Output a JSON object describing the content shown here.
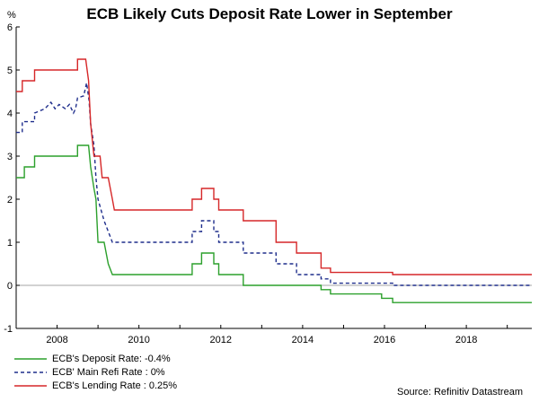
{
  "chart_data": {
    "type": "line",
    "title": "ECB Likely Cuts Deposit Rate Lower in September",
    "ylabel": "%",
    "xlabel": "",
    "ylim": [
      -1,
      6
    ],
    "xlim": [
      2007.0,
      2019.6
    ],
    "yticks": [
      -1,
      0,
      1,
      2,
      3,
      4,
      5,
      6
    ],
    "xticks": [
      2008,
      2010,
      2012,
      2014,
      2016,
      2018
    ],
    "series": [
      {
        "name": "ECB's Deposit Rate: -0.4%",
        "color": "#2ca02c",
        "style": "solid",
        "points": [
          [
            2007.0,
            2.5
          ],
          [
            2007.2,
            2.5
          ],
          [
            2007.2,
            2.75
          ],
          [
            2007.45,
            2.75
          ],
          [
            2007.45,
            3.0
          ],
          [
            2008.5,
            3.0
          ],
          [
            2008.5,
            3.25
          ],
          [
            2008.77,
            3.25
          ],
          [
            2008.82,
            2.75
          ],
          [
            2008.9,
            2.25
          ],
          [
            2008.95,
            2.0
          ],
          [
            2009.0,
            1.0
          ],
          [
            2009.15,
            1.0
          ],
          [
            2009.25,
            0.5
          ],
          [
            2009.35,
            0.25
          ],
          [
            2011.3,
            0.25
          ],
          [
            2011.3,
            0.5
          ],
          [
            2011.53,
            0.5
          ],
          [
            2011.53,
            0.75
          ],
          [
            2011.83,
            0.75
          ],
          [
            2011.83,
            0.5
          ],
          [
            2011.95,
            0.5
          ],
          [
            2011.95,
            0.25
          ],
          [
            2012.55,
            0.25
          ],
          [
            2012.55,
            0.0
          ],
          [
            2014.45,
            0.0
          ],
          [
            2014.45,
            -0.1
          ],
          [
            2014.68,
            -0.1
          ],
          [
            2014.68,
            -0.2
          ],
          [
            2015.93,
            -0.2
          ],
          [
            2015.93,
            -0.3
          ],
          [
            2016.2,
            -0.3
          ],
          [
            2016.2,
            -0.4
          ],
          [
            2019.6,
            -0.4
          ]
        ]
      },
      {
        "name": "ECB' Main Refi Rate : 0%",
        "color": "#1f2e8c",
        "style": "dashed",
        "points": [
          [
            2007.0,
            3.55
          ],
          [
            2007.15,
            3.55
          ],
          [
            2007.15,
            3.8
          ],
          [
            2007.45,
            3.8
          ],
          [
            2007.45,
            4.0
          ],
          [
            2007.7,
            4.1
          ],
          [
            2007.85,
            4.25
          ],
          [
            2007.95,
            4.1
          ],
          [
            2008.05,
            4.2
          ],
          [
            2008.2,
            4.1
          ],
          [
            2008.3,
            4.2
          ],
          [
            2008.4,
            4.0
          ],
          [
            2008.45,
            4.1
          ],
          [
            2008.5,
            4.35
          ],
          [
            2008.65,
            4.4
          ],
          [
            2008.72,
            4.7
          ],
          [
            2008.78,
            4.3
          ],
          [
            2008.82,
            3.75
          ],
          [
            2008.9,
            3.25
          ],
          [
            2008.95,
            2.5
          ],
          [
            2009.0,
            2.0
          ],
          [
            2009.15,
            1.5
          ],
          [
            2009.25,
            1.25
          ],
          [
            2009.35,
            1.0
          ],
          [
            2011.3,
            1.0
          ],
          [
            2011.3,
            1.25
          ],
          [
            2011.53,
            1.25
          ],
          [
            2011.53,
            1.5
          ],
          [
            2011.83,
            1.5
          ],
          [
            2011.83,
            1.25
          ],
          [
            2011.95,
            1.25
          ],
          [
            2011.95,
            1.0
          ],
          [
            2012.55,
            1.0
          ],
          [
            2012.55,
            0.75
          ],
          [
            2013.35,
            0.75
          ],
          [
            2013.35,
            0.5
          ],
          [
            2013.85,
            0.5
          ],
          [
            2013.85,
            0.25
          ],
          [
            2014.45,
            0.25
          ],
          [
            2014.45,
            0.15
          ],
          [
            2014.68,
            0.15
          ],
          [
            2014.68,
            0.05
          ],
          [
            2016.2,
            0.05
          ],
          [
            2016.2,
            0.0
          ],
          [
            2019.6,
            0.0
          ]
        ]
      },
      {
        "name": "ECB's Lending Rate : 0.25%",
        "color": "#d62728",
        "style": "solid",
        "points": [
          [
            2007.0,
            4.5
          ],
          [
            2007.15,
            4.5
          ],
          [
            2007.15,
            4.75
          ],
          [
            2007.45,
            4.75
          ],
          [
            2007.45,
            5.0
          ],
          [
            2008.5,
            5.0
          ],
          [
            2008.5,
            5.25
          ],
          [
            2008.7,
            5.25
          ],
          [
            2008.77,
            4.75
          ],
          [
            2008.82,
            3.75
          ],
          [
            2008.9,
            3.0
          ],
          [
            2009.05,
            3.0
          ],
          [
            2009.1,
            2.5
          ],
          [
            2009.25,
            2.5
          ],
          [
            2009.3,
            2.25
          ],
          [
            2009.35,
            2.0
          ],
          [
            2009.4,
            1.75
          ],
          [
            2011.3,
            1.75
          ],
          [
            2011.3,
            2.0
          ],
          [
            2011.53,
            2.0
          ],
          [
            2011.53,
            2.25
          ],
          [
            2011.83,
            2.25
          ],
          [
            2011.83,
            2.0
          ],
          [
            2011.95,
            2.0
          ],
          [
            2011.95,
            1.75
          ],
          [
            2012.55,
            1.75
          ],
          [
            2012.55,
            1.5
          ],
          [
            2013.35,
            1.5
          ],
          [
            2013.35,
            1.0
          ],
          [
            2013.85,
            1.0
          ],
          [
            2013.85,
            0.75
          ],
          [
            2014.45,
            0.75
          ],
          [
            2014.45,
            0.4
          ],
          [
            2014.68,
            0.4
          ],
          [
            2014.68,
            0.3
          ],
          [
            2015.93,
            0.3
          ],
          [
            2015.93,
            0.3
          ],
          [
            2016.2,
            0.3
          ],
          [
            2016.2,
            0.25
          ],
          [
            2019.6,
            0.25
          ]
        ]
      }
    ]
  },
  "source": "Source: Refinitiv Datastream"
}
